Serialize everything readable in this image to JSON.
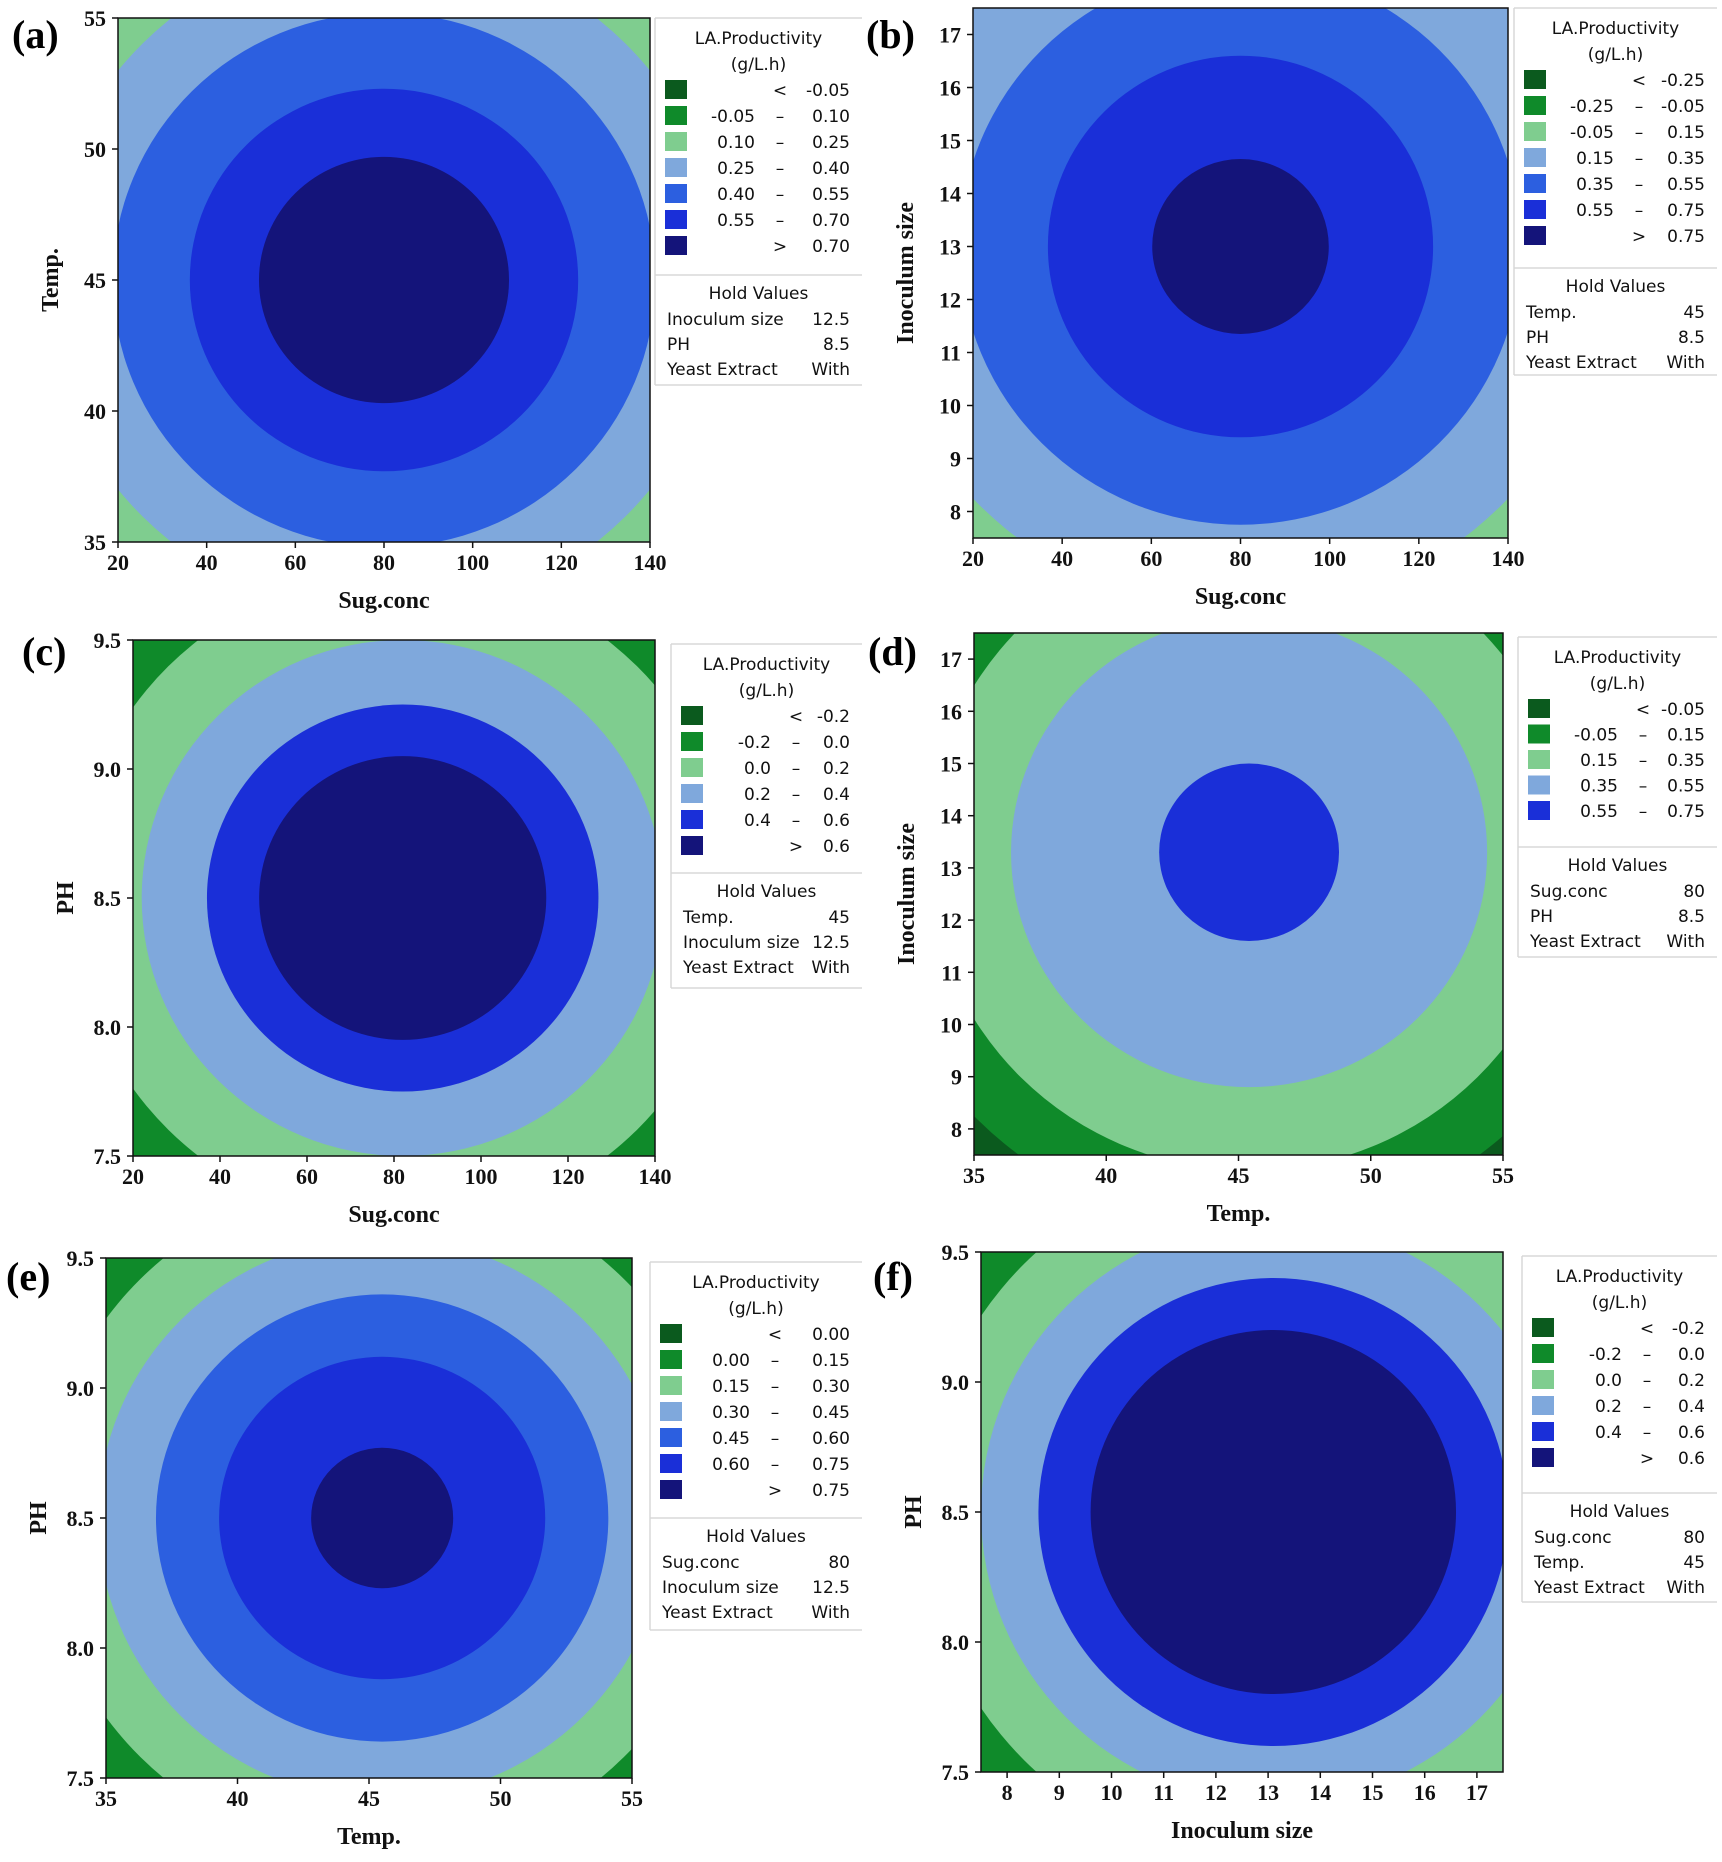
{
  "figure_colors": {
    "palette": [
      "#0b5a1e",
      "#0f8a2a",
      "#7fcd8f",
      "#7fa8dc",
      "#2c5fe0",
      "#1a2fd8",
      "#14147a"
    ],
    "frame": "#111111"
  },
  "chart_data": [
    {
      "panel": "(a)",
      "type": "contour",
      "xlabel": "Sug.conc",
      "ylabel": "Temp.",
      "xlim": [
        20,
        140
      ],
      "ylim": [
        35,
        55
      ],
      "xticks": [
        "20",
        "40",
        "60",
        "80",
        "100",
        "120",
        "140"
      ],
      "yticks": [
        "35",
        "40",
        "45",
        "50",
        "55"
      ],
      "center": [
        80,
        45
      ],
      "half_range": [
        60,
        10
      ],
      "levels": [
        -0.05,
        0.1,
        0.25,
        0.4,
        0.55,
        0.7
      ],
      "level_radii": [
        1.68,
        1.5,
        1.28,
        1.02,
        0.73,
        0.47
      ],
      "legend": {
        "title": [
          "LA.Productivity",
          "(g/L.h)"
        ],
        "entries": [
          {
            "lo": "",
            "sep": "<",
            "hi": "-0.05",
            "color": "#0b5a1e"
          },
          {
            "lo": "-0.05",
            "sep": "–",
            "hi": "0.10",
            "color": "#0f8a2a"
          },
          {
            "lo": "0.10",
            "sep": "–",
            "hi": "0.25",
            "color": "#7fcd8f"
          },
          {
            "lo": "0.25",
            "sep": "–",
            "hi": "0.40",
            "color": "#7fa8dc"
          },
          {
            "lo": "0.40",
            "sep": "–",
            "hi": "0.55",
            "color": "#2c5fe0"
          },
          {
            "lo": "0.55",
            "sep": "–",
            "hi": "0.70",
            "color": "#1a2fd8"
          },
          {
            "lo": "",
            "sep": ">",
            "hi": "0.70",
            "color": "#14147a"
          }
        ],
        "hold_title": "Hold Values",
        "hold": [
          {
            "name": "Inoculum size",
            "value": "12.5"
          },
          {
            "name": "PH",
            "value": "8.5"
          },
          {
            "name": "Yeast Extract",
            "value": "With"
          }
        ]
      }
    },
    {
      "panel": "(b)",
      "type": "contour",
      "xlabel": "Sug.conc",
      "ylabel": "Inoculum size",
      "xlim": [
        20,
        140
      ],
      "ylim": [
        7.5,
        17.5
      ],
      "xticks": [
        "20",
        "40",
        "60",
        "80",
        "100",
        "120",
        "140"
      ],
      "yticks": [
        "8",
        "9",
        "10",
        "11",
        "12",
        "13",
        "14",
        "15",
        "16",
        "17"
      ],
      "center": [
        80,
        13
      ],
      "half_range": [
        60,
        5
      ],
      "levels": [
        -0.25,
        -0.05,
        0.15,
        0.35,
        0.55,
        0.75
      ],
      "level_radii": [
        1.9,
        1.62,
        1.38,
        1.05,
        0.72,
        0.33
      ],
      "legend": {
        "title": [
          "LA.Productivity",
          "(g/L.h)"
        ],
        "entries": [
          {
            "lo": "",
            "sep": "<",
            "hi": "-0.25",
            "color": "#0b5a1e"
          },
          {
            "lo": "-0.25",
            "sep": "–",
            "hi": "-0.05",
            "color": "#0f8a2a"
          },
          {
            "lo": "-0.05",
            "sep": "–",
            "hi": "0.15",
            "color": "#7fcd8f"
          },
          {
            "lo": "0.15",
            "sep": "–",
            "hi": "0.35",
            "color": "#7fa8dc"
          },
          {
            "lo": "0.35",
            "sep": "–",
            "hi": "0.55",
            "color": "#2c5fe0"
          },
          {
            "lo": "0.55",
            "sep": "–",
            "hi": "0.75",
            "color": "#1a2fd8"
          },
          {
            "lo": "",
            "sep": ">",
            "hi": "0.75",
            "color": "#14147a"
          }
        ],
        "hold_title": "Hold Values",
        "hold": [
          {
            "name": "Temp.",
            "value": "45"
          },
          {
            "name": "PH",
            "value": "8.5"
          },
          {
            "name": "Yeast Extract",
            "value": "With"
          }
        ]
      }
    },
    {
      "panel": "(c)",
      "type": "contour",
      "xlabel": "Sug.conc",
      "ylabel": "PH",
      "xlim": [
        20,
        140
      ],
      "ylim": [
        7.5,
        9.5
      ],
      "xticks": [
        "20",
        "40",
        "60",
        "80",
        "100",
        "120",
        "140"
      ],
      "yticks": [
        "7.5",
        "8.0",
        "8.5",
        "9.0",
        "9.5"
      ],
      "center": [
        82,
        8.5
      ],
      "half_range": [
        60,
        1
      ],
      "levels": [
        -0.2,
        0.0,
        0.2,
        0.4,
        0.6
      ],
      "level_radii": [
        1.5,
        1.27,
        1.0,
        0.75,
        0.55
      ],
      "legend": {
        "title": [
          "LA.Productivity",
          "(g/L.h)"
        ],
        "entries": [
          {
            "lo": "",
            "sep": "<",
            "hi": "-0.2",
            "color": "#0b5a1e"
          },
          {
            "lo": "-0.2",
            "sep": "–",
            "hi": "0.0",
            "color": "#0f8a2a"
          },
          {
            "lo": "0.0",
            "sep": "–",
            "hi": "0.2",
            "color": "#7fcd8f"
          },
          {
            "lo": "0.2",
            "sep": "–",
            "hi": "0.4",
            "color": "#7fa8dc"
          },
          {
            "lo": "0.4",
            "sep": "–",
            "hi": "0.6",
            "color": "#1a2fd8"
          },
          {
            "lo": "",
            "sep": ">",
            "hi": "0.6",
            "color": "#14147a"
          }
        ],
        "hold_title": "Hold Values",
        "hold": [
          {
            "name": "Temp.",
            "value": "45"
          },
          {
            "name": "Inoculum size",
            "value": "12.5"
          },
          {
            "name": "Yeast Extract",
            "value": "With"
          }
        ]
      }
    },
    {
      "panel": "(d)",
      "type": "contour",
      "xlabel": "Temp.",
      "ylabel": "Inoculum size",
      "xlim": [
        35,
        55
      ],
      "ylim": [
        7.5,
        17.5
      ],
      "xticks": [
        "35",
        "40",
        "45",
        "50",
        "55"
      ],
      "yticks": [
        "8",
        "9",
        "10",
        "11",
        "12",
        "13",
        "14",
        "15",
        "16",
        "17"
      ],
      "center": [
        45.4,
        13.3
      ],
      "half_range": [
        10,
        5
      ],
      "levels": [
        -0.05,
        0.15,
        0.35,
        0.55
      ],
      "level_radii": [
        1.45,
        1.22,
        0.9,
        0.34
      ],
      "legend": {
        "title": [
          "LA.Productivity",
          "(g/L.h)"
        ],
        "entries": [
          {
            "lo": "",
            "sep": "<",
            "hi": "-0.05",
            "color": "#0b5a1e"
          },
          {
            "lo": "-0.05",
            "sep": "–",
            "hi": "0.15",
            "color": "#0f8a2a"
          },
          {
            "lo": "0.15",
            "sep": "–",
            "hi": "0.35",
            "color": "#7fcd8f"
          },
          {
            "lo": "0.35",
            "sep": "–",
            "hi": "0.55",
            "color": "#7fa8dc"
          },
          {
            "lo": "0.55",
            "sep": "–",
            "hi": "0.75",
            "color": "#1a2fd8"
          }
        ],
        "extra_peak_color": "#14147a",
        "hold_title": "Hold Values",
        "hold": [
          {
            "name": "Sug.conc",
            "value": "80"
          },
          {
            "name": "PH",
            "value": "8.5"
          },
          {
            "name": "Yeast Extract",
            "value": "With"
          }
        ]
      }
    },
    {
      "panel": "(e)",
      "type": "contour",
      "xlabel": "Temp.",
      "ylabel": "PH",
      "xlim": [
        35,
        55
      ],
      "ylim": [
        7.5,
        9.5
      ],
      "xticks": [
        "35",
        "40",
        "45",
        "50",
        "55"
      ],
      "yticks": [
        "7.5",
        "8.0",
        "8.5",
        "9.0",
        "9.5"
      ],
      "center": [
        45.5,
        8.5
      ],
      "half_range": [
        10,
        1
      ],
      "levels": [
        0.0,
        0.15,
        0.3,
        0.45,
        0.6,
        0.75
      ],
      "level_radii": [
        1.5,
        1.3,
        1.08,
        0.86,
        0.62,
        0.27
      ],
      "legend": {
        "title": [
          "LA.Productivity",
          "(g/L.h)"
        ],
        "entries": [
          {
            "lo": "",
            "sep": "<",
            "hi": "0.00",
            "color": "#0b5a1e"
          },
          {
            "lo": "0.00",
            "sep": "–",
            "hi": "0.15",
            "color": "#0f8a2a"
          },
          {
            "lo": "0.15",
            "sep": "–",
            "hi": "0.30",
            "color": "#7fcd8f"
          },
          {
            "lo": "0.30",
            "sep": "–",
            "hi": "0.45",
            "color": "#7fa8dc"
          },
          {
            "lo": "0.45",
            "sep": "–",
            "hi": "0.60",
            "color": "#2c5fe0"
          },
          {
            "lo": "0.60",
            "sep": "–",
            "hi": "0.75",
            "color": "#1a2fd8"
          },
          {
            "lo": "",
            "sep": ">",
            "hi": "0.75",
            "color": "#14147a"
          }
        ],
        "hold_title": "Hold Values",
        "hold": [
          {
            "name": "Sug.conc",
            "value": "80"
          },
          {
            "name": "Inoculum size",
            "value": "12.5"
          },
          {
            "name": "Yeast Extract",
            "value": "With"
          }
        ]
      }
    },
    {
      "panel": "(f)",
      "type": "contour",
      "xlabel": "Inoculum size",
      "ylabel": "PH",
      "xlim": [
        7.5,
        17.5
      ],
      "ylim": [
        7.5,
        9.5
      ],
      "xticks": [
        "8",
        "9",
        "10",
        "11",
        "12",
        "13",
        "14",
        "15",
        "16",
        "17"
      ],
      "yticks": [
        "7.5",
        "8.0",
        "8.5",
        "9.0",
        "9.5"
      ],
      "center": [
        13.1,
        8.5
      ],
      "half_range": [
        5,
        1
      ],
      "levels": [
        -0.2,
        0.0,
        0.2,
        0.4,
        0.6
      ],
      "level_radii": [
        1.62,
        1.35,
        1.12,
        0.9,
        0.7
      ],
      "legend": {
        "title": [
          "LA.Productivity",
          "(g/L.h)"
        ],
        "entries": [
          {
            "lo": "",
            "sep": "<",
            "hi": "-0.2",
            "color": "#0b5a1e"
          },
          {
            "lo": "-0.2",
            "sep": "–",
            "hi": "0.0",
            "color": "#0f8a2a"
          },
          {
            "lo": "0.0",
            "sep": "–",
            "hi": "0.2",
            "color": "#7fcd8f"
          },
          {
            "lo": "0.2",
            "sep": "–",
            "hi": "0.4",
            "color": "#7fa8dc"
          },
          {
            "lo": "0.4",
            "sep": "–",
            "hi": "0.6",
            "color": "#1a2fd8"
          },
          {
            "lo": "",
            "sep": ">",
            "hi": "0.6",
            "color": "#14147a"
          }
        ],
        "hold_title": "Hold Values",
        "hold": [
          {
            "name": "Sug.conc",
            "value": "80"
          },
          {
            "name": "Temp.",
            "value": "45"
          },
          {
            "name": "Yeast Extract",
            "value": "With"
          }
        ]
      }
    }
  ]
}
